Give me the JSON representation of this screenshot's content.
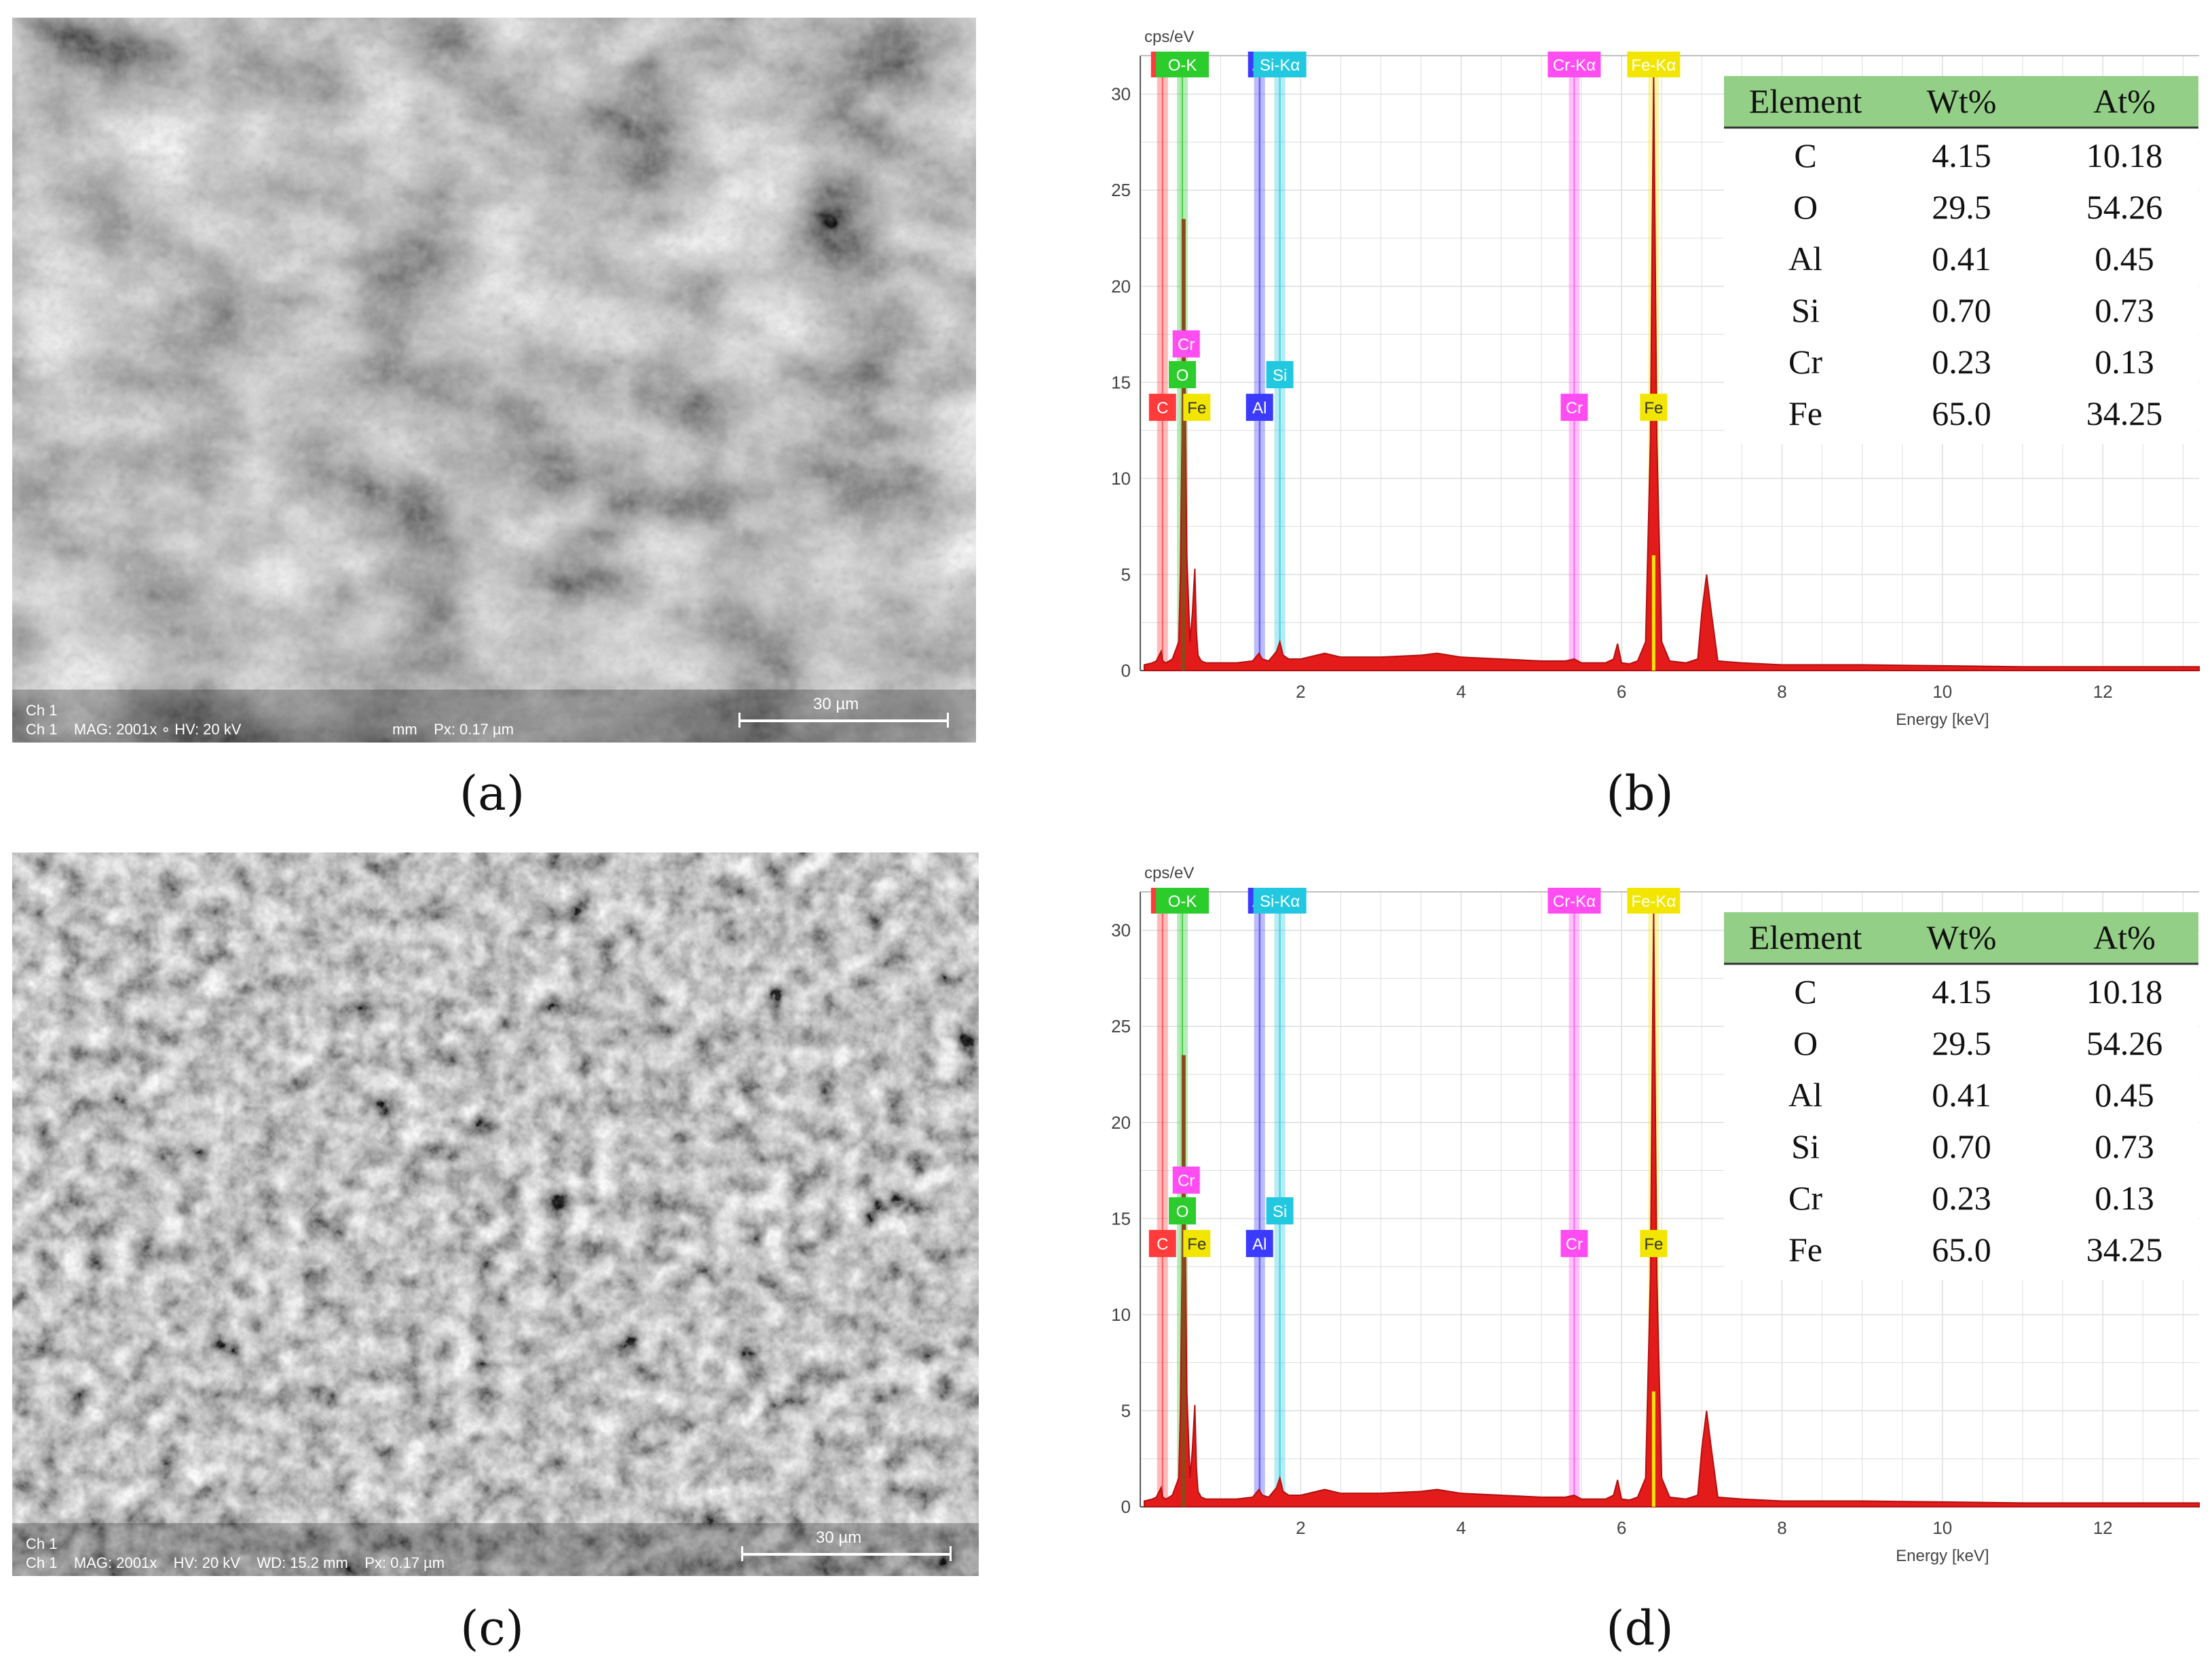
{
  "panels": [
    {
      "id": "a",
      "caption": "(a)",
      "sem": {
        "ch_line1": "Ch 1",
        "ch_line2": "Ch 1    MAG: 2001x ∘ HV: 20 kV",
        "pixel_info": "mm    Px: 0.17 µm",
        "scale_bar_label": "30 µm"
      }
    },
    {
      "id": "c",
      "caption": "(c)",
      "sem": {
        "ch_line1": "Ch 1",
        "ch_line2": "Ch 1    MAG: 2001x    HV: 20 kV    WD: 15.2 mm    Px: 0.17 µm",
        "pixel_info": "",
        "scale_bar_label": "30 µm"
      }
    }
  ],
  "chart_data": [
    {
      "panel": "b",
      "caption": "(b)",
      "type": "line",
      "ylabel": "cps/eV",
      "xlabel": "Energy [keV]",
      "xlim": [
        0,
        13.2
      ],
      "ylim": [
        0,
        32
      ],
      "xticks": [
        2,
        4,
        6,
        8,
        10,
        12
      ],
      "yticks": [
        0,
        5,
        10,
        15,
        20,
        25,
        30
      ],
      "series": [
        {
          "x": [
            0.05,
            0.15,
            0.2,
            0.26,
            0.28,
            0.32,
            0.4,
            0.48,
            0.5,
            0.52,
            0.54,
            0.58,
            0.62,
            0.65,
            0.68,
            0.7,
            0.72,
            0.76,
            0.82,
            1.0,
            1.2,
            1.4,
            1.48,
            1.52,
            1.6,
            1.7,
            1.74,
            1.78,
            1.85,
            2.0,
            2.3,
            2.5,
            3.0,
            3.5,
            3.7,
            4.0,
            4.5,
            5.0,
            5.3,
            5.41,
            5.5,
            5.8,
            5.9,
            5.95,
            6.0,
            6.1,
            6.2,
            6.3,
            6.36,
            6.4,
            6.44,
            6.5,
            6.6,
            6.8,
            6.95,
            7.0,
            7.06,
            7.12,
            7.2,
            7.5,
            8,
            9,
            10,
            11,
            12,
            13.2
          ],
          "y": [
            0.3,
            0.4,
            0.5,
            1.0,
            0.5,
            0.4,
            0.6,
            1.5,
            5.0,
            12,
            23.5,
            6.0,
            1.5,
            3.0,
            5.3,
            2.0,
            0.8,
            0.5,
            0.4,
            0.4,
            0.4,
            0.5,
            0.9,
            0.6,
            0.5,
            1.0,
            1.5,
            0.8,
            0.6,
            0.6,
            0.9,
            0.7,
            0.7,
            0.8,
            0.9,
            0.7,
            0.6,
            0.5,
            0.5,
            0.6,
            0.4,
            0.4,
            0.6,
            1.4,
            0.4,
            0.35,
            0.5,
            1.5,
            12,
            31.0,
            12,
            1.5,
            0.5,
            0.4,
            0.6,
            3.0,
            5.0,
            3.0,
            0.5,
            0.4,
            0.3,
            0.3,
            0.25,
            0.2,
            0.2,
            0.2
          ]
        }
      ],
      "element_lines": [
        {
          "label": "C",
          "energy": 0.277,
          "color": "#ff3b3b"
        },
        {
          "label": "O-K",
          "energy": 0.525,
          "color": "#2dcc2d"
        },
        {
          "label": "Al",
          "energy": 1.487,
          "color": "#3b3bff"
        },
        {
          "label": "Si-Kα",
          "energy": 1.74,
          "color": "#22c8e0"
        },
        {
          "label": "Cr-Kα",
          "energy": 5.41,
          "color": "#ff4df2"
        },
        {
          "label": "Fe-Kα",
          "energy": 6.4,
          "color": "#f2e600"
        }
      ],
      "peak_labels": [
        {
          "label": "Cr",
          "energy": 0.573,
          "y": 17.0,
          "color": "#ff4df2"
        },
        {
          "label": "O",
          "energy": 0.525,
          "y": 15.4,
          "color": "#2dcc2d"
        },
        {
          "label": "C",
          "energy": 0.277,
          "y": 13.7,
          "color": "#ff3b3b"
        },
        {
          "label": "Fe",
          "energy": 0.705,
          "y": 13.7,
          "color": "#f2e600"
        },
        {
          "label": "Al",
          "energy": 1.487,
          "y": 13.7,
          "color": "#3b3bff"
        },
        {
          "label": "Si",
          "energy": 1.74,
          "y": 15.4,
          "color": "#22c8e0"
        },
        {
          "label": "Cr",
          "energy": 5.41,
          "y": 13.7,
          "color": "#ff4df2"
        },
        {
          "label": "Fe",
          "energy": 6.4,
          "y": 13.7,
          "color": "#f2e600"
        }
      ],
      "table": {
        "headers": [
          "Element",
          "Wt%",
          "At%"
        ],
        "rows": [
          [
            "C",
            "4.15",
            "10.18"
          ],
          [
            "O",
            "29.5",
            "54.26"
          ],
          [
            "Al",
            "0.41",
            "0.45"
          ],
          [
            "Si",
            "0.70",
            "0.73"
          ],
          [
            "Cr",
            "0.23",
            "0.13"
          ],
          [
            "Fe",
            "65.0",
            "34.25"
          ]
        ]
      }
    },
    {
      "panel": "d",
      "caption": "(d)",
      "type": "line",
      "ylabel": "cps/eV",
      "xlabel": "Energy [keV]",
      "xlim": [
        0,
        13.2
      ],
      "ylim": [
        0,
        32
      ],
      "xticks": [
        2,
        4,
        6,
        8,
        10,
        12
      ],
      "yticks": [
        0,
        5,
        10,
        15,
        20,
        25,
        30
      ],
      "series": [
        {
          "x": [
            0.05,
            0.15,
            0.2,
            0.26,
            0.28,
            0.32,
            0.4,
            0.48,
            0.5,
            0.52,
            0.54,
            0.58,
            0.62,
            0.65,
            0.68,
            0.7,
            0.72,
            0.76,
            0.82,
            1.0,
            1.2,
            1.4,
            1.48,
            1.52,
            1.6,
            1.7,
            1.74,
            1.78,
            1.85,
            2.0,
            2.3,
            2.5,
            3.0,
            3.5,
            3.7,
            4.0,
            4.5,
            5.0,
            5.3,
            5.41,
            5.5,
            5.8,
            5.9,
            5.95,
            6.0,
            6.1,
            6.2,
            6.3,
            6.36,
            6.4,
            6.44,
            6.5,
            6.6,
            6.8,
            6.95,
            7.0,
            7.06,
            7.12,
            7.2,
            7.5,
            8,
            9,
            10,
            11,
            12,
            13.2
          ],
          "y": [
            0.3,
            0.4,
            0.5,
            1.0,
            0.5,
            0.4,
            0.6,
            1.5,
            5.0,
            12,
            23.5,
            6.0,
            1.5,
            3.0,
            5.3,
            2.0,
            0.8,
            0.5,
            0.4,
            0.4,
            0.4,
            0.5,
            0.9,
            0.6,
            0.5,
            1.0,
            1.5,
            0.8,
            0.6,
            0.6,
            0.9,
            0.7,
            0.7,
            0.8,
            0.9,
            0.7,
            0.6,
            0.5,
            0.5,
            0.6,
            0.4,
            0.4,
            0.6,
            1.4,
            0.4,
            0.35,
            0.5,
            1.5,
            12,
            31.0,
            12,
            1.5,
            0.5,
            0.4,
            0.6,
            3.0,
            5.0,
            3.0,
            0.5,
            0.4,
            0.3,
            0.3,
            0.25,
            0.2,
            0.2,
            0.2
          ]
        }
      ],
      "element_lines": [
        {
          "label": "C",
          "energy": 0.277,
          "color": "#ff3b3b"
        },
        {
          "label": "O-K",
          "energy": 0.525,
          "color": "#2dcc2d"
        },
        {
          "label": "Al",
          "energy": 1.487,
          "color": "#3b3bff"
        },
        {
          "label": "Si-Kα",
          "energy": 1.74,
          "color": "#22c8e0"
        },
        {
          "label": "Cr-Kα",
          "energy": 5.41,
          "color": "#ff4df2"
        },
        {
          "label": "Fe-Kα",
          "energy": 6.4,
          "color": "#f2e600"
        }
      ],
      "peak_labels": [
        {
          "label": "Cr",
          "energy": 0.573,
          "y": 17.0,
          "color": "#ff4df2"
        },
        {
          "label": "O",
          "energy": 0.525,
          "y": 15.4,
          "color": "#2dcc2d"
        },
        {
          "label": "C",
          "energy": 0.277,
          "y": 13.7,
          "color": "#ff3b3b"
        },
        {
          "label": "Fe",
          "energy": 0.705,
          "y": 13.7,
          "color": "#f2e600"
        },
        {
          "label": "Al",
          "energy": 1.487,
          "y": 13.7,
          "color": "#3b3bff"
        },
        {
          "label": "Si",
          "energy": 1.74,
          "y": 15.4,
          "color": "#22c8e0"
        },
        {
          "label": "Cr",
          "energy": 5.41,
          "y": 13.7,
          "color": "#ff4df2"
        },
        {
          "label": "Fe",
          "energy": 6.4,
          "y": 13.7,
          "color": "#f2e600"
        }
      ],
      "table": {
        "headers": [
          "Element",
          "Wt%",
          "At%"
        ],
        "rows": [
          [
            "C",
            "4.15",
            "10.18"
          ],
          [
            "O",
            "29.5",
            "54.26"
          ],
          [
            "Al",
            "0.41",
            "0.45"
          ],
          [
            "Si",
            "0.70",
            "0.73"
          ],
          [
            "Cr",
            "0.23",
            "0.13"
          ],
          [
            "Fe",
            "65.0",
            "34.25"
          ]
        ]
      }
    }
  ],
  "colors": {
    "spectrum_fill": "#e41b1b",
    "spectrum_edge": "#b01010",
    "table_header_bg": "#93cf86",
    "grid": "#dedede"
  }
}
